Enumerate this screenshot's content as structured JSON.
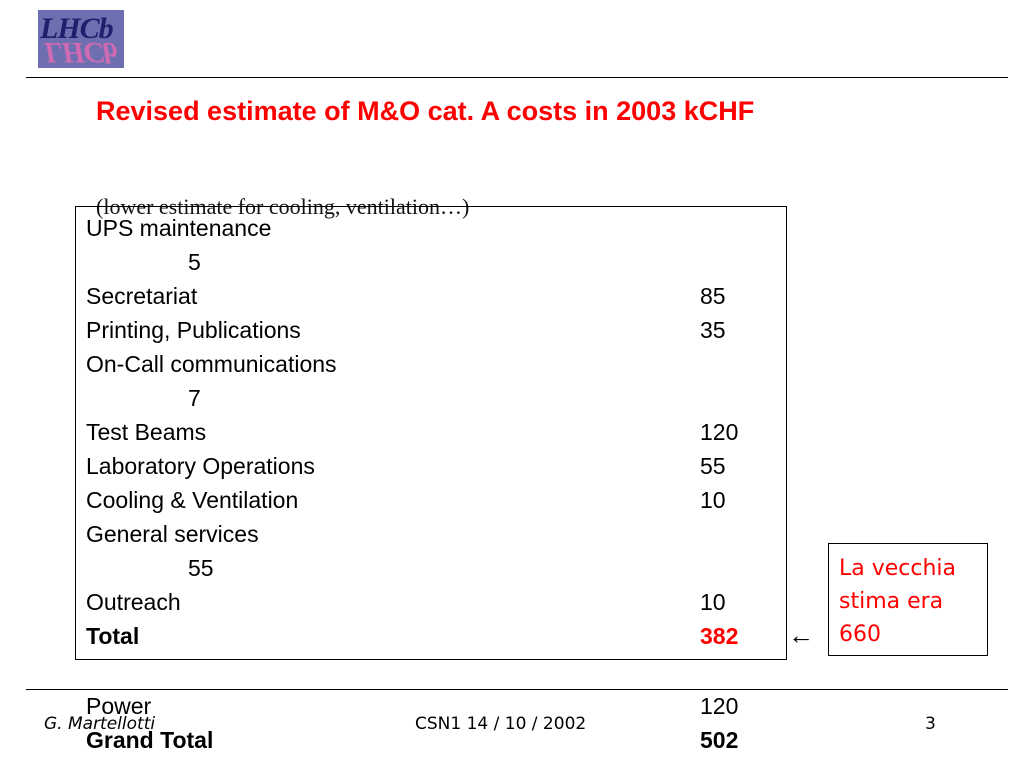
{
  "logo": {
    "text": "LHCb"
  },
  "title": "Revised estimate of M&O cat. A costs in 2003 kCHF",
  "subtitle": "(lower estimate for cooling, ventilation…)",
  "items": [
    {
      "label": "UPS maintenance",
      "value": "5"
    },
    {
      "label": "Secretariat",
      "value": "85"
    },
    {
      "label": "Printing, Publications",
      "value": "35"
    },
    {
      "label": "On-Call communications",
      "value": "7"
    },
    {
      "label": "Test Beams",
      "value": "120"
    },
    {
      "label": "Laboratory Operations",
      "value": "55"
    },
    {
      "label": "Cooling & Ventilation",
      "value": "10"
    },
    {
      "label": "General services",
      "value": "55"
    },
    {
      "label": "Outreach",
      "value": "10"
    }
  ],
  "total": {
    "label": "Total",
    "value": "382"
  },
  "arrow": "←",
  "note": {
    "line1": "La vecchia",
    "line2": "stima era",
    "line3": "660"
  },
  "power": {
    "label": "Power",
    "value": "120"
  },
  "grand_total": {
    "label": "Grand Total",
    "value": "502"
  },
  "footer": {
    "author": "G. Martellotti",
    "event": "CSN1  14 / 10 / 2002",
    "page": "3"
  },
  "colors": {
    "title": "#ff0000",
    "note": "#ff0000",
    "total_value": "#ff0000",
    "logo_bg": "#6e6fb0"
  }
}
